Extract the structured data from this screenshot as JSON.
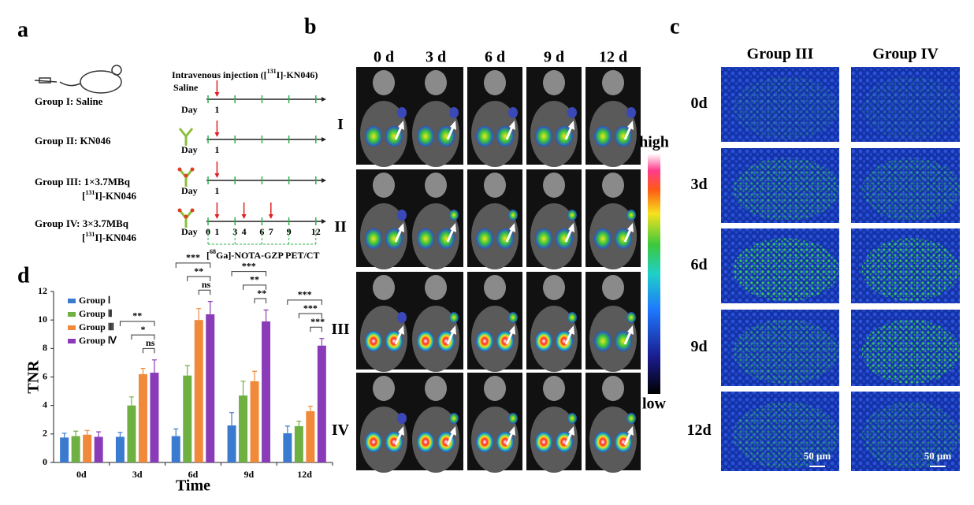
{
  "panels": {
    "a": "a",
    "b": "b",
    "c": "c",
    "d": "d"
  },
  "panel_a": {
    "groups": [
      "Group I: Saline",
      "Group II: KN046",
      "Group III: 1×3.7MBq",
      "Group IV: 3×3.7MBq"
    ],
    "compound": [
      {
        "pre": "[",
        "sup": "131",
        "post": "I]-KN046"
      },
      {
        "pre": "[",
        "sup": "131",
        "post": "I]-KN046"
      }
    ],
    "injection": {
      "pre": "Intravenous injection ([",
      "sup": "131",
      "post": "I]-KN046)"
    },
    "timelines": [
      {
        "label": "Saline",
        "day": "Day",
        "days": [
          1
        ]
      },
      {
        "day": "Day",
        "days": [
          1
        ]
      },
      {
        "day": "Day",
        "days": [
          1
        ]
      },
      {
        "day": "Day",
        "days": [
          0,
          1,
          3,
          4,
          6,
          7,
          9,
          12
        ]
      }
    ],
    "imaging": {
      "pre": "[",
      "sup": "68",
      "post": "Ga]-NOTA-GZP PET/CT"
    }
  },
  "panel_b": {
    "columns": [
      "0 d",
      "3 d",
      "6 d",
      "9 d",
      "12 d"
    ],
    "rows": [
      "I",
      "II",
      "III",
      "IV"
    ],
    "colorbar": {
      "high": "high",
      "low": "low"
    }
  },
  "panel_c": {
    "columns": [
      "Group III",
      "Group IV"
    ],
    "rows": [
      "0d",
      "3d",
      "6d",
      "9d",
      "12d"
    ],
    "scale_bar": [
      "50 μm",
      "50 μm"
    ]
  },
  "chart_data": {
    "type": "bar",
    "x_label": "Time",
    "y_label": "TNR",
    "categories": [
      "0d",
      "3d",
      "6d",
      "9d",
      "12d"
    ],
    "series": [
      {
        "name": "Group Ⅰ",
        "color": "#3a7bd0",
        "values": [
          1.75,
          1.8,
          1.85,
          2.6,
          2.05
        ],
        "errors": [
          0.3,
          0.3,
          0.5,
          0.9,
          0.5
        ]
      },
      {
        "name": "Group Ⅱ",
        "color": "#6fb043",
        "values": [
          1.85,
          4.0,
          6.1,
          4.7,
          2.55
        ],
        "errors": [
          0.35,
          0.6,
          0.7,
          1.0,
          0.35
        ]
      },
      {
        "name": "Group Ⅲ",
        "color": "#f08a3a",
        "values": [
          1.95,
          6.2,
          10.0,
          5.7,
          3.6
        ],
        "errors": [
          0.3,
          0.4,
          0.8,
          0.7,
          0.35
        ]
      },
      {
        "name": "Group Ⅳ",
        "color": "#8a3cb8",
        "values": [
          1.8,
          6.3,
          10.4,
          9.9,
          8.2
        ],
        "errors": [
          0.35,
          0.9,
          0.9,
          0.8,
          0.5
        ]
      }
    ],
    "significance": [
      null,
      [
        "**",
        "*",
        "ns"
      ],
      [
        "***",
        "**",
        "ns"
      ],
      [
        "***",
        "**",
        "**"
      ],
      [
        "***",
        "***",
        "***"
      ]
    ],
    "ylim": [
      0,
      12
    ],
    "yticks": [
      0,
      2,
      4,
      6,
      8,
      10,
      12
    ],
    "legend": "upper-left"
  }
}
